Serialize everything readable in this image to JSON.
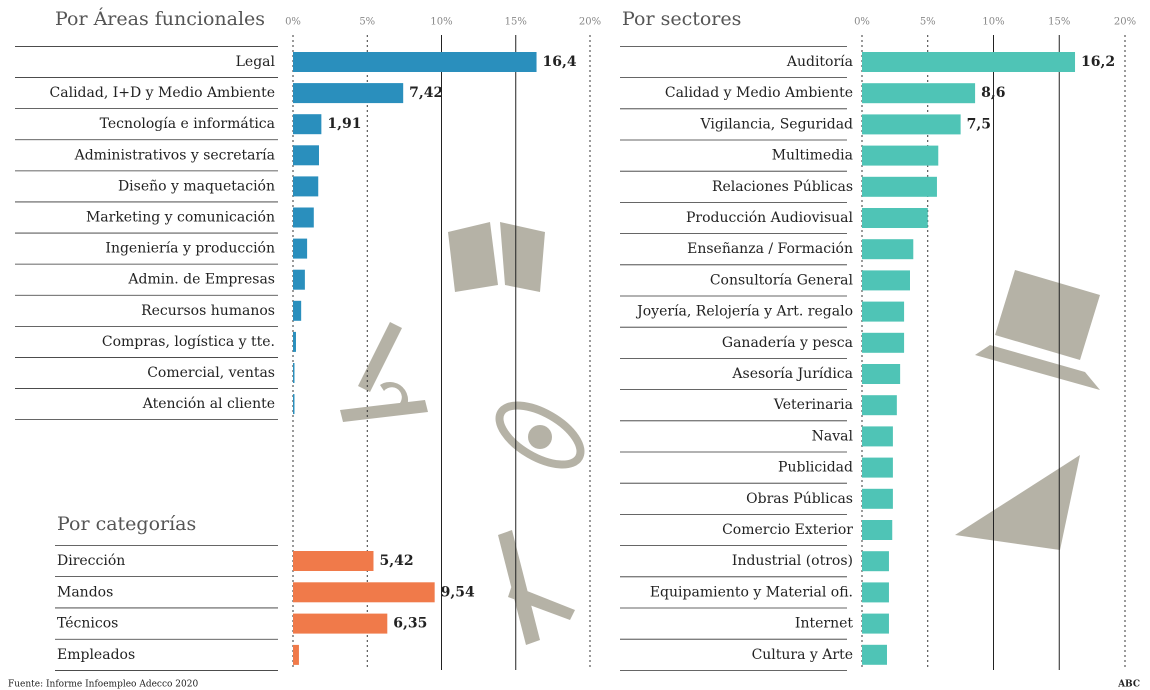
{
  "chart_data": [
    {
      "type": "hbar",
      "title": "Por Áreas funcionales",
      "categories": [
        "Legal",
        "Calidad, I+D y Medio Ambiente",
        "Tecnología e informática",
        "Administrativos y secretaría",
        "Diseño y maquetación",
        "Marketing y comunicación",
        "Ingeniería y producción",
        "Admin. de Empresas",
        "Recursos humanos",
        "Compras, logística y tte.",
        "Comercial, ventas",
        "Atención al cliente"
      ],
      "values": [
        16.4,
        7.42,
        1.91,
        1.75,
        1.7,
        1.4,
        0.95,
        0.8,
        0.55,
        0.2,
        0.1,
        0.1
      ],
      "value_labels": [
        "16,4",
        "7,42",
        "1,91",
        null,
        null,
        null,
        null,
        null,
        null,
        null,
        null,
        null
      ],
      "color": "#2a8fbd",
      "xlim": [
        0,
        20
      ],
      "xticks": [
        {
          "value": 0,
          "label": "0%"
        },
        {
          "value": 5,
          "label": "5%"
        },
        {
          "value": 10,
          "label": "10%"
        },
        {
          "value": 15,
          "label": "15%"
        },
        {
          "value": 20,
          "label": "20%"
        }
      ],
      "grid": true
    },
    {
      "type": "hbar",
      "title": "Por categorías",
      "categories": [
        "Dirección",
        "Mandos",
        "Técnicos",
        "Empleados"
      ],
      "values": [
        5.42,
        9.54,
        6.35,
        0.4
      ],
      "value_labels": [
        "5,42",
        "9,54",
        "6,35",
        null
      ],
      "color": "#f07a4a",
      "xlim": [
        0,
        20
      ]
    },
    {
      "type": "hbar",
      "title": "Por sectores",
      "categories": [
        "Auditoría",
        "Calidad y Medio Ambiente",
        "Vigilancia, Seguridad",
        "Multimedia",
        "Relaciones Públicas",
        "Producción Audiovisual",
        "Enseñanza / Formación",
        "Consultoría General",
        "Joyería, Relojería y Art. regalo",
        "Ganadería y pesca",
        "Asesoría Jurídica",
        "Veterinaria",
        "Naval",
        "Publicidad",
        "Obras Públicas",
        "Comercio Exterior",
        "Industrial (otros)",
        "Equipamiento y Material ofi.",
        "Internet",
        "Cultura y Arte"
      ],
      "values": [
        16.2,
        8.6,
        7.5,
        5.8,
        5.7,
        5.0,
        3.9,
        3.65,
        3.2,
        3.2,
        2.9,
        2.65,
        2.35,
        2.35,
        2.35,
        2.3,
        2.05,
        2.05,
        2.05,
        1.9
      ],
      "value_labels": [
        "16,2",
        "8,6",
        "7,5",
        null,
        null,
        null,
        null,
        null,
        null,
        null,
        null,
        null,
        null,
        null,
        null,
        null,
        null,
        null,
        null,
        null
      ],
      "color": "#4fc4b6",
      "xlim": [
        0,
        20
      ],
      "xticks": [
        {
          "value": 0,
          "label": "0%"
        },
        {
          "value": 5,
          "label": "5%"
        },
        {
          "value": 10,
          "label": "10%"
        },
        {
          "value": 15,
          "label": "15%"
        },
        {
          "value": 20,
          "label": "20%"
        }
      ],
      "grid": true
    }
  ],
  "source": "Fuente: Informe Infoempleo Adecco 2020",
  "credit": "ABC"
}
